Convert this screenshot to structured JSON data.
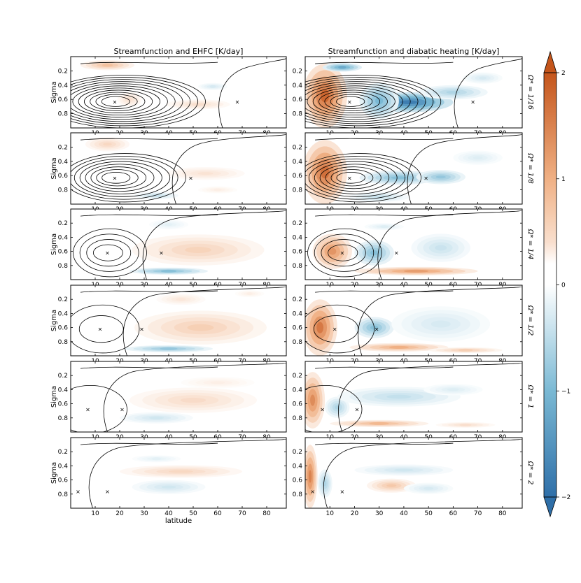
{
  "chart_data": {
    "type": "heatmap",
    "titles": {
      "left": "Streamfunction and EHFC [K/day]",
      "right": "Streamfunction and diabatic heating [K/day]"
    },
    "xlabel": "latitude",
    "ylabel": "Sigma",
    "xlim": [
      0,
      88
    ],
    "ylim": [
      0,
      1
    ],
    "x_ticks": [
      "10",
      "20",
      "30",
      "40",
      "50",
      "60",
      "70",
      "80"
    ],
    "y_ticks": [
      "0.2",
      "0.4",
      "0.6",
      "0.8"
    ],
    "rows": [
      {
        "label": "Ω* = 1/16",
        "x_markers": [
          18,
          68
        ],
        "cell_center": [
          18,
          0.63
        ],
        "n_contours": 11
      },
      {
        "label": "Ω* = 1/8",
        "x_markers": [
          18,
          49
        ],
        "cell_center": [
          18,
          0.63
        ],
        "n_contours": 8
      },
      {
        "label": "Ω* = 1/4",
        "x_markers": [
          15,
          37
        ],
        "cell_center": [
          15,
          0.62
        ],
        "n_contours": 4
      },
      {
        "label": "Ω* = 1/2",
        "x_markers": [
          12,
          29
        ],
        "cell_center": [
          12,
          0.62
        ],
        "n_contours": 2
      },
      {
        "label": "Ω* = 1",
        "x_markers": [
          7,
          21
        ],
        "cell_center": [
          7,
          0.68
        ],
        "n_contours": 1
      },
      {
        "label": "Ω* = 2",
        "x_markers": [
          3,
          15
        ],
        "cell_center": [
          3,
          0.76
        ],
        "n_contours": 0
      }
    ],
    "colorbar": {
      "range": [
        -2,
        2
      ],
      "ticks": [
        "2",
        "1",
        "0",
        "−1",
        "−2"
      ],
      "colors": {
        "positive": "#c4551b",
        "neutral": "#ffffff",
        "negative": "#2f6fa8"
      }
    }
  }
}
